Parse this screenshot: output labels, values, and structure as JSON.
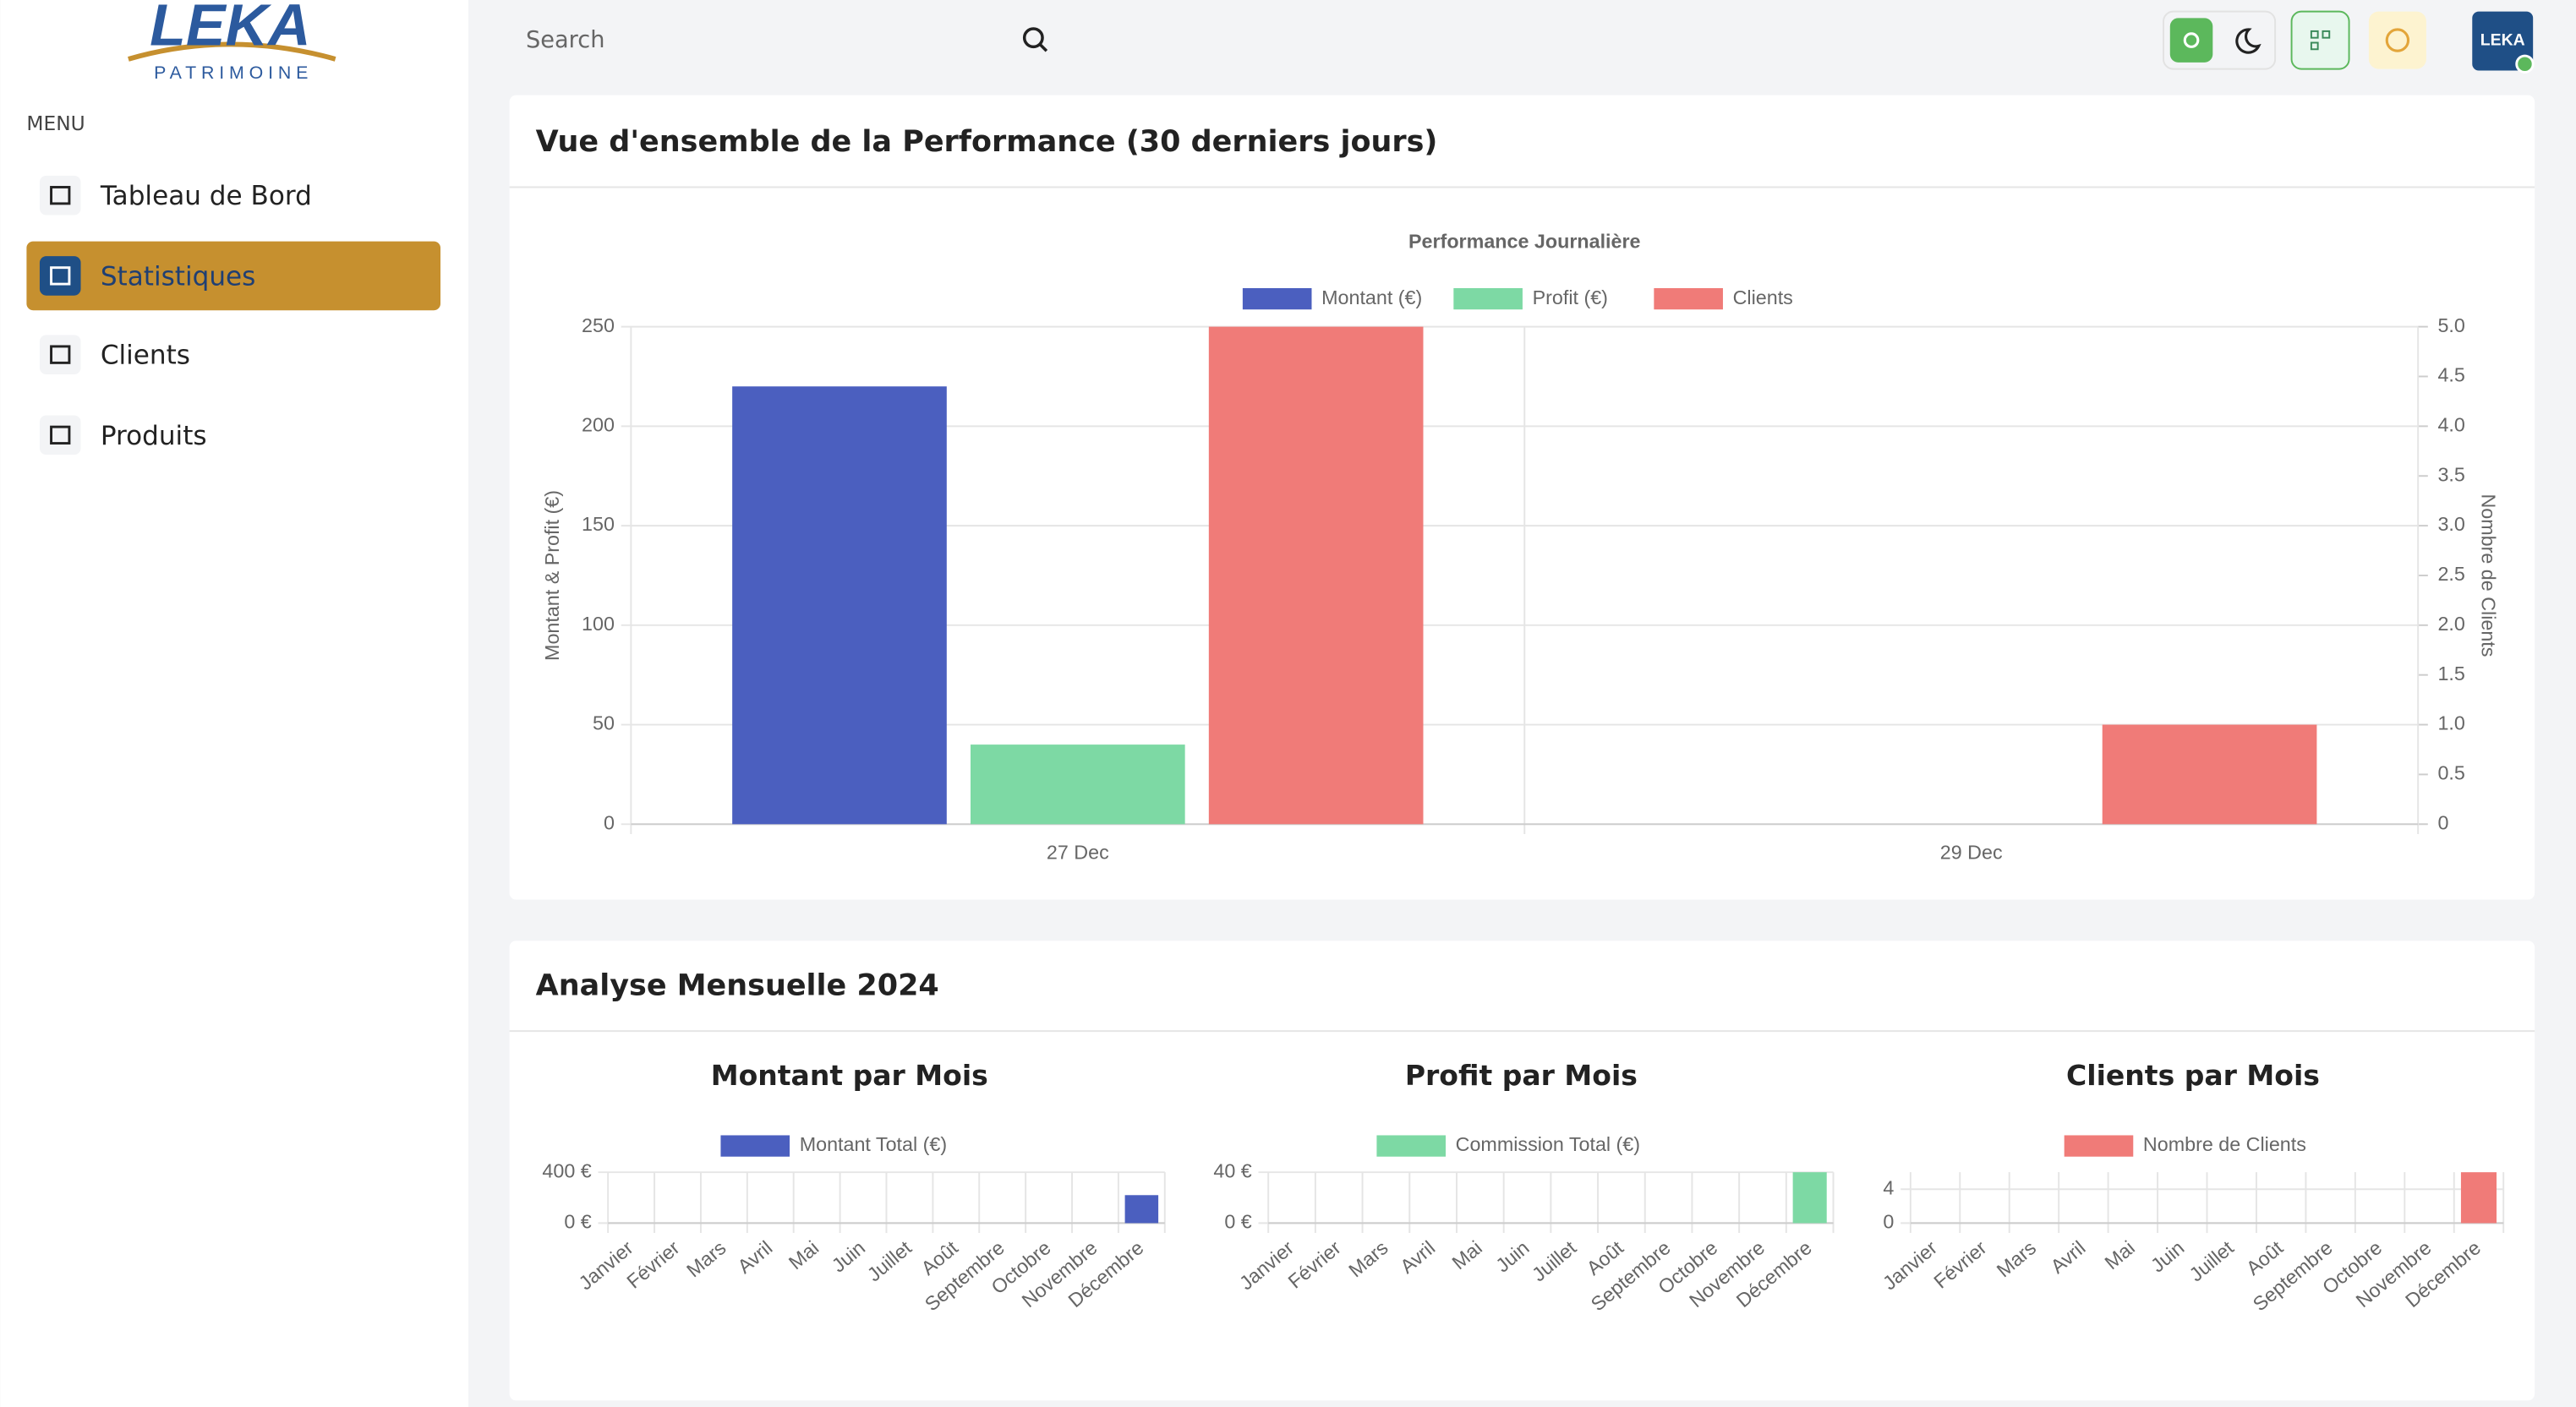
{
  "sidebar": {
    "logo": "LEKA",
    "logo_sub": "PATRIMOINE",
    "menu_title": "MENU",
    "items": [
      "Tableau de Bord",
      "Statistiques",
      "Clients",
      "Produits"
    ],
    "active_index": 1
  },
  "header": {
    "search_placeholder": "Search",
    "avatar": "LEKA"
  },
  "sections": [
    {
      "title": "Vue d'ensemble de la Performance (30 derniers jours)"
    },
    {
      "title": "Analyse Mensuelle 2024"
    }
  ],
  "chart_data": [
    {
      "type": "bar",
      "title": "Performance Journalière",
      "categories": [
        "27 Dec",
        "29 Dec"
      ],
      "series": [
        {
          "name": "Montant (€)",
          "color": "#4b5fbf",
          "values": [
            220,
            0
          ]
        },
        {
          "name": "Profit (€)",
          "color": "#7dd9a4",
          "values": [
            40,
            0
          ]
        },
        {
          "name": "Clients",
          "color": "#f07b78",
          "values": [
            5,
            1
          ],
          "axis": "y2"
        }
      ],
      "ylabel": "Montant & Profit (€)",
      "y2label": "Nombre de Clients",
      "ylim": [
        0,
        250
      ],
      "yticks": [
        0,
        50,
        100,
        150,
        200,
        250
      ],
      "y2lim": [
        0,
        5
      ],
      "y2ticks": [
        0,
        0.5,
        {
          "value": 1,
          "label": "1.0"
        },
        1.5,
        {
          "value": 2,
          "label": "2.0"
        },
        2.5,
        {
          "value": 3,
          "label": "3.0"
        },
        3.5,
        {
          "value": 4,
          "label": "4.0"
        },
        4.5,
        {
          "value": 5,
          "label": "5.0"
        }
      ],
      "grid": true
    },
    {
      "type": "bar",
      "title": "Montant par Mois",
      "categories": [
        "Janvier",
        "Février",
        "Mars",
        "Avril",
        "Mai",
        "Juin",
        "Juillet",
        "Août",
        "Septembre",
        "Octobre",
        "Novembre",
        "Décembre"
      ],
      "series": [
        {
          "name": "Montant Total (€)",
          "color": "#4b5fbf",
          "values": [
            0,
            0,
            0,
            0,
            0,
            0,
            0,
            0,
            0,
            0,
            0,
            220
          ]
        }
      ],
      "ylim": [
        0,
        400
      ],
      "yticks": [
        {
          "value": 0,
          "label": "0 €"
        },
        {
          "value": 400,
          "label": "400 €"
        }
      ],
      "grid": true
    },
    {
      "type": "bar",
      "title": "Profit par Mois",
      "categories": [
        "Janvier",
        "Février",
        "Mars",
        "Avril",
        "Mai",
        "Juin",
        "Juillet",
        "Août",
        "Septembre",
        "Octobre",
        "Novembre",
        "Décembre"
      ],
      "series": [
        {
          "name": "Commission Total (€)",
          "color": "#7dd9a4",
          "values": [
            0,
            0,
            0,
            0,
            0,
            0,
            0,
            0,
            0,
            0,
            0,
            40
          ]
        }
      ],
      "ylim": [
        0,
        40
      ],
      "yticks": [
        {
          "value": 0,
          "label": "0 €"
        },
        {
          "value": 40,
          "label": "40 €"
        }
      ],
      "grid": true
    },
    {
      "type": "bar",
      "title": "Clients par Mois",
      "categories": [
        "Janvier",
        "Février",
        "Mars",
        "Avril",
        "Mai",
        "Juin",
        "Juillet",
        "Août",
        "Septembre",
        "Octobre",
        "Novembre",
        "Décembre"
      ],
      "series": [
        {
          "name": "Nombre de Clients",
          "color": "#f07b78",
          "values": [
            0,
            0,
            0,
            0,
            0,
            0,
            0,
            0,
            0,
            0,
            0,
            6
          ]
        }
      ],
      "ylim": [
        0,
        6
      ],
      "yticks": [
        0,
        4
      ],
      "grid": true
    }
  ]
}
